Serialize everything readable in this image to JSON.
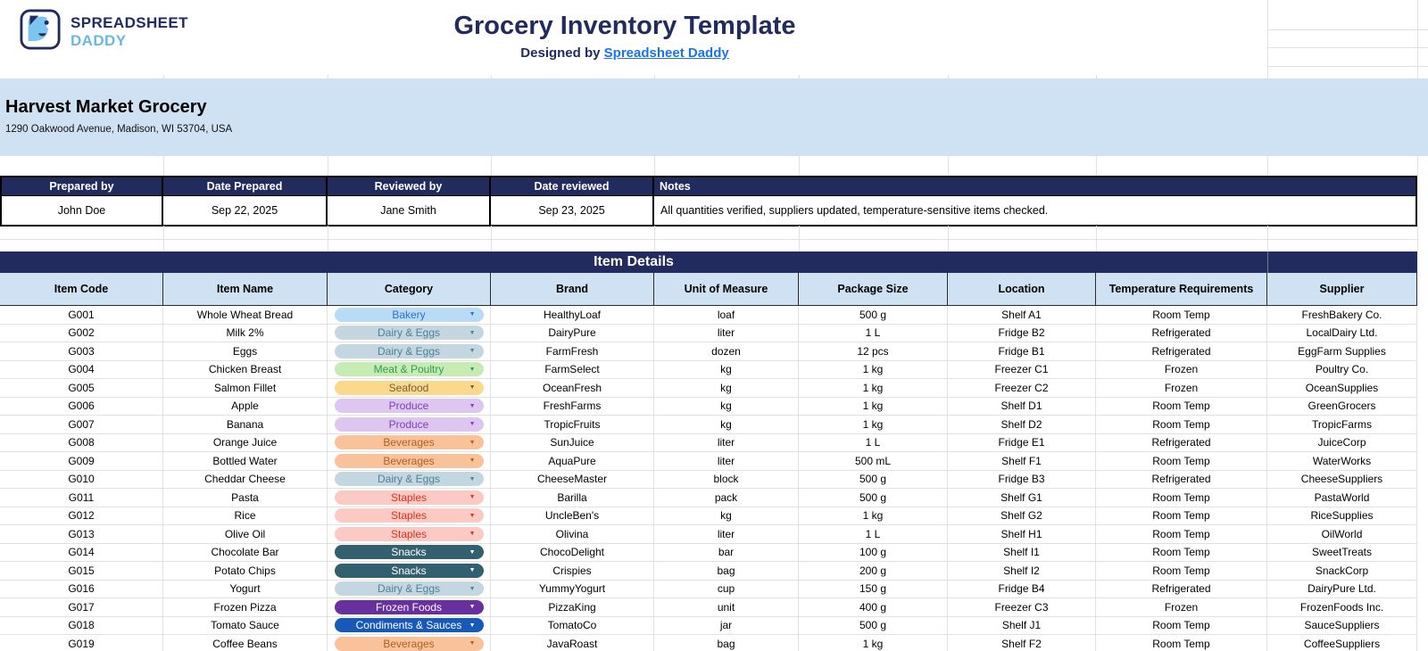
{
  "colors": {
    "navy": "#212b5e",
    "light_blue": "#cfe2f3",
    "link_blue": "#1a73e8",
    "logo_blue": "#7cc5f0",
    "daddy_blue": "#6ab7e6",
    "gridline": "#e2e2e2"
  },
  "icons": {
    "dropdown": "▼"
  },
  "brand": {
    "line1": "SPREADSHEET",
    "line2": "DADDY"
  },
  "header": {
    "title": "Grocery Inventory Template",
    "designed_by_prefix": "Designed by ",
    "designed_by_link": "Spreadsheet Daddy"
  },
  "store": {
    "name": "Harvest Market Grocery",
    "address": "1290 Oakwood Avenue, Madison, WI 53704, USA"
  },
  "meta_table": {
    "headers": [
      "Prepared by",
      "Date Prepared",
      "Reviewed by",
      "Date reviewed",
      "Notes"
    ],
    "values": [
      "John Doe",
      "Sep 22, 2025",
      "Jane Smith",
      "Sep 23, 2025",
      "All quantities verified, suppliers updated, temperature-sensitive items checked."
    ]
  },
  "item_details": {
    "title": "Item Details",
    "columns": [
      "Item Code",
      "Item Name",
      "Category",
      "Brand",
      "Unit of Measure",
      "Package Size",
      "Location",
      "Temperature Requirements",
      "Supplier"
    ],
    "category_styles": {
      "Bakery": {
        "bg": "#b8dcf5",
        "fg": "#2e6fd6"
      },
      "Dairy & Eggs": {
        "bg": "#c4d6df",
        "fg": "#4b8296"
      },
      "Meat & Poultry": {
        "bg": "#c8eab4",
        "fg": "#2f9e51"
      },
      "Seafood": {
        "bg": "#fbd98c",
        "fg": "#6f603a"
      },
      "Produce": {
        "bg": "#ddc6f0",
        "fg": "#8040b8"
      },
      "Beverages": {
        "bg": "#f9c29a",
        "fg": "#b35f1f"
      },
      "Staples": {
        "bg": "#fccac4",
        "fg": "#e0301e"
      },
      "Snacks": {
        "bg": "#33606f",
        "fg": "#ffffff"
      },
      "Frozen Foods": {
        "bg": "#6a2f9e",
        "fg": "#ffffff"
      },
      "Condiments & Sauces": {
        "bg": "#1759b8",
        "fg": "#ffffff"
      }
    },
    "rows": [
      [
        "G001",
        "Whole Wheat Bread",
        "Bakery",
        "HealthyLoaf",
        "loaf",
        "500 g",
        "Shelf A1",
        "Room Temp",
        "FreshBakery Co."
      ],
      [
        "G002",
        "Milk 2%",
        "Dairy & Eggs",
        "DairyPure",
        "liter",
        "1 L",
        "Fridge B2",
        "Refrigerated",
        "LocalDairy Ltd."
      ],
      [
        "G003",
        "Eggs",
        "Dairy & Eggs",
        "FarmFresh",
        "dozen",
        "12 pcs",
        "Fridge B1",
        "Refrigerated",
        "EggFarm Supplies"
      ],
      [
        "G004",
        "Chicken Breast",
        "Meat & Poultry",
        "FarmSelect",
        "kg",
        "1 kg",
        "Freezer C1",
        "Frozen",
        "Poultry Co."
      ],
      [
        "G005",
        "Salmon Fillet",
        "Seafood",
        "OceanFresh",
        "kg",
        "1 kg",
        "Freezer C2",
        "Frozen",
        "OceanSupplies"
      ],
      [
        "G006",
        "Apple",
        "Produce",
        "FreshFarms",
        "kg",
        "1 kg",
        "Shelf D1",
        "Room Temp",
        "GreenGrocers"
      ],
      [
        "G007",
        "Banana",
        "Produce",
        "TropicFruits",
        "kg",
        "1 kg",
        "Shelf D2",
        "Room Temp",
        "TropicFarms"
      ],
      [
        "G008",
        "Orange Juice",
        "Beverages",
        "SunJuice",
        "liter",
        "1 L",
        "Fridge E1",
        "Refrigerated",
        "JuiceCorp"
      ],
      [
        "G009",
        "Bottled Water",
        "Beverages",
        "AquaPure",
        "liter",
        "500 mL",
        "Shelf F1",
        "Room Temp",
        "WaterWorks"
      ],
      [
        "G010",
        "Cheddar Cheese",
        "Dairy & Eggs",
        "CheeseMaster",
        "block",
        "500 g",
        "Fridge B3",
        "Refrigerated",
        "CheeseSuppliers"
      ],
      [
        "G011",
        "Pasta",
        "Staples",
        "Barilla",
        "pack",
        "500 g",
        "Shelf G1",
        "Room Temp",
        "PastaWorld"
      ],
      [
        "G012",
        "Rice",
        "Staples",
        "UncleBen's",
        "kg",
        "1 kg",
        "Shelf G2",
        "Room Temp",
        "RiceSupplies"
      ],
      [
        "G013",
        "Olive Oil",
        "Staples",
        "Olivina",
        "liter",
        "1 L",
        "Shelf H1",
        "Room Temp",
        "OilWorld"
      ],
      [
        "G014",
        "Chocolate Bar",
        "Snacks",
        "ChocoDelight",
        "bar",
        "100 g",
        "Shelf I1",
        "Room Temp",
        "SweetTreats"
      ],
      [
        "G015",
        "Potato Chips",
        "Snacks",
        "Crispies",
        "bag",
        "200 g",
        "Shelf I2",
        "Room Temp",
        "SnackCorp"
      ],
      [
        "G016",
        "Yogurt",
        "Dairy & Eggs",
        "YummyYogurt",
        "cup",
        "150 g",
        "Fridge B4",
        "Refrigerated",
        "DairyPure Ltd."
      ],
      [
        "G017",
        "Frozen Pizza",
        "Frozen Foods",
        "PizzaKing",
        "unit",
        "400 g",
        "Freezer C3",
        "Frozen",
        "FrozenFoods Inc."
      ],
      [
        "G018",
        "Tomato Sauce",
        "Condiments & Sauces",
        "TomatoCo",
        "jar",
        "500 g",
        "Shelf J1",
        "Room Temp",
        "SauceSuppliers"
      ],
      [
        "G019",
        "Coffee Beans",
        "Beverages",
        "JavaRoast",
        "bag",
        "1 kg",
        "Shelf F2",
        "Room Temp",
        "CoffeeSuppliers"
      ]
    ]
  }
}
